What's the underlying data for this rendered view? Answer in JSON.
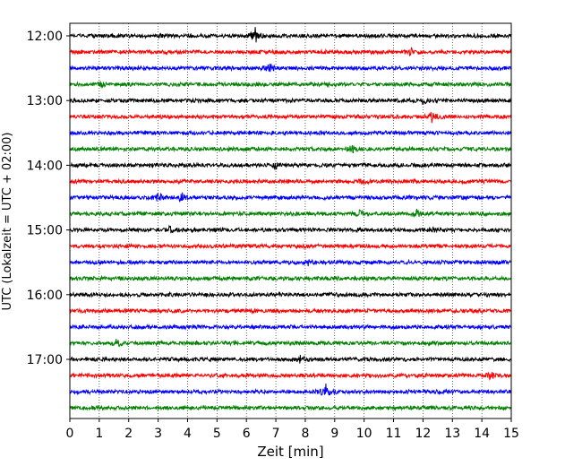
{
  "chart_data": {
    "type": "line",
    "title": "",
    "xlabel": "Zeit  [min]",
    "ylabel": "UTC (Lokalzeit = UTC + 02:00)",
    "xlim": [
      0,
      15
    ],
    "x_ticks": [
      "0",
      "1",
      "2",
      "3",
      "4",
      "5",
      "6",
      "7",
      "8",
      "9",
      "10",
      "11",
      "12",
      "13",
      "14",
      "15"
    ],
    "y_tick_labels": [
      "12:00",
      "13:00",
      "14:00",
      "15:00",
      "16:00",
      "17:00"
    ],
    "grid": "vertical dotted lines at each minute",
    "trace_colors": [
      "#000000",
      "#ff0000",
      "#0000ff",
      "#008000"
    ],
    "series": [
      {
        "start": "12:00",
        "events": [
          {
            "t": 6.3,
            "amp": 8
          }
        ]
      },
      {
        "start": "12:15",
        "events": [
          {
            "t": 11.6,
            "amp": 4
          }
        ]
      },
      {
        "start": "12:30",
        "events": [
          {
            "t": 6.8,
            "amp": 4
          }
        ]
      },
      {
        "start": "12:45",
        "events": [
          {
            "t": 1.1,
            "amp": 3
          }
        ]
      },
      {
        "start": "13:00",
        "events": [
          {
            "t": 12.0,
            "amp": 3
          }
        ]
      },
      {
        "start": "13:15",
        "events": [
          {
            "t": 12.3,
            "amp": 5
          }
        ]
      },
      {
        "start": "13:30",
        "events": []
      },
      {
        "start": "13:45",
        "events": [
          {
            "t": 9.6,
            "amp": 3
          }
        ]
      },
      {
        "start": "14:00",
        "events": [
          {
            "t": 7.0,
            "amp": 3
          }
        ]
      },
      {
        "start": "14:15",
        "events": [
          {
            "t": 10.0,
            "amp": 3
          }
        ]
      },
      {
        "start": "14:30",
        "events": [
          {
            "t": 3.0,
            "amp": 4
          },
          {
            "t": 3.8,
            "amp": 5
          }
        ]
      },
      {
        "start": "14:45",
        "events": [
          {
            "t": 9.8,
            "amp": 4
          },
          {
            "t": 11.8,
            "amp": 4
          }
        ]
      },
      {
        "start": "15:00",
        "events": [
          {
            "t": 3.4,
            "amp": 3
          },
          {
            "t": 12.3,
            "amp": 3
          }
        ]
      },
      {
        "start": "15:15",
        "events": []
      },
      {
        "start": "15:30",
        "events": [
          {
            "t": 8.1,
            "amp": 3
          }
        ]
      },
      {
        "start": "15:45",
        "events": []
      },
      {
        "start": "16:00",
        "events": []
      },
      {
        "start": "16:15",
        "events": []
      },
      {
        "start": "16:30",
        "events": []
      },
      {
        "start": "16:45",
        "events": [
          {
            "t": 1.6,
            "amp": 3
          }
        ]
      },
      {
        "start": "17:00",
        "events": [
          {
            "t": 7.8,
            "amp": 4
          }
        ]
      },
      {
        "start": "17:15",
        "events": [
          {
            "t": 14.3,
            "amp": 3
          }
        ]
      },
      {
        "start": "17:30",
        "events": [
          {
            "t": 8.7,
            "amp": 8
          }
        ]
      },
      {
        "start": "17:45",
        "events": []
      }
    ]
  }
}
